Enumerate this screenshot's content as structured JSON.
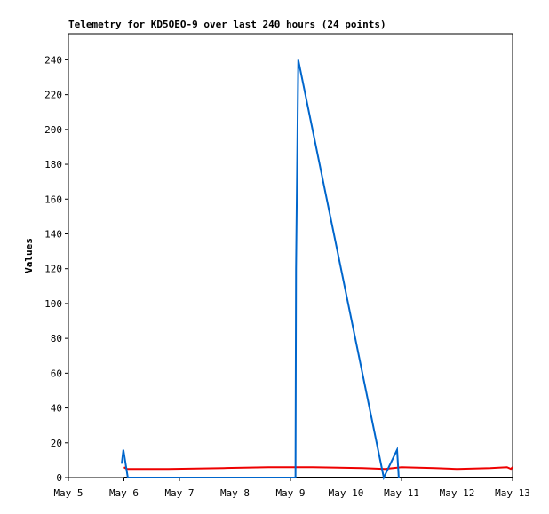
{
  "chart_data": {
    "type": "line",
    "title": "Telemetry for KD5OEO-9 over last 240 hours (24 points)",
    "ylabel": "Values",
    "xlim": [
      5,
      13
    ],
    "xticks": [
      {
        "value": 5,
        "label": "May 5"
      },
      {
        "value": 6,
        "label": "May 6"
      },
      {
        "value": 7,
        "label": "May 7"
      },
      {
        "value": 8,
        "label": "May 8"
      },
      {
        "value": 9,
        "label": "May 9"
      },
      {
        "value": 10,
        "label": "May 10"
      },
      {
        "value": 11,
        "label": "May 11"
      },
      {
        "value": 12,
        "label": "May 12"
      },
      {
        "value": 13,
        "label": "May 13"
      }
    ],
    "ylim": [
      0,
      255
    ],
    "yticks": [
      0,
      20,
      40,
      60,
      80,
      100,
      120,
      140,
      160,
      180,
      200,
      220,
      240
    ],
    "series": [
      {
        "color": "#000000",
        "x": [
          6.0,
          13.0
        ],
        "values": [
          0,
          0
        ]
      },
      {
        "color": "#ee0000",
        "x": [
          6.0,
          6.05,
          6.8,
          7.8,
          8.6,
          9.4,
          10.3,
          10.7,
          11.0,
          11.6,
          12.0,
          12.6,
          12.9,
          12.97,
          13.0
        ],
        "values": [
          6,
          5,
          5,
          5.5,
          6,
          6,
          5.5,
          5,
          6,
          5.5,
          5,
          5.5,
          6,
          5,
          6
        ]
      },
      {
        "color": "#0066cc",
        "x": [
          5.96,
          5.99,
          6.07,
          9.09,
          9.1,
          9.14,
          10.68,
          10.92,
          10.95
        ],
        "values": [
          8,
          16,
          0,
          0,
          120,
          240,
          0,
          16,
          0
        ]
      }
    ]
  }
}
